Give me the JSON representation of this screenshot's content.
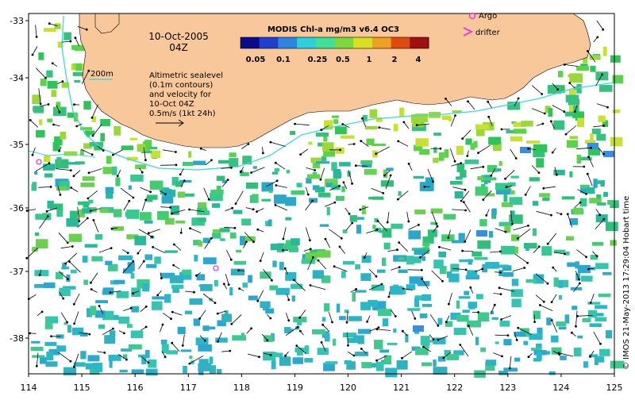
{
  "map": {
    "date": "10-Oct-2005",
    "time": "04Z",
    "contour_label": "200m",
    "annotation_lines": [
      "Altimetric sealevel",
      "(0.1m contours)",
      "and velocity for",
      "10-Oct 04Z"
    ],
    "scale_text": "0.5m/s (1kt 24h)",
    "colorbar_title": "MODIS Chl-a mg/m3 v6.4 OC3",
    "colorbar_ticks": [
      "0.05",
      "0.1",
      "0.25",
      "0.5",
      "1",
      "2",
      "4"
    ],
    "legend": {
      "argo": "Argo",
      "drifter": "drifter"
    },
    "credit": "© IMOS 21-May-2013 17:29:04 Hobart time",
    "lon_ticks": [
      "114",
      "115",
      "116",
      "117",
      "118",
      "119",
      "120",
      "121",
      "122",
      "123",
      "124",
      "125"
    ],
    "lat_ticks": [
      "-33",
      "-34",
      "-35",
      "-36",
      "-37",
      "-38"
    ],
    "colors": {
      "land": "#f8c89a",
      "contour": "#40d8d8",
      "argo": "#e040e0",
      "frame": "#000000"
    },
    "colorbar_colors": [
      "#0a0a8c",
      "#1f3fd0",
      "#2a86e0",
      "#2ad0e0",
      "#40e09a",
      "#7ad840",
      "#d8e020",
      "#f0a020",
      "#e04a10",
      "#a01010"
    ]
  }
}
